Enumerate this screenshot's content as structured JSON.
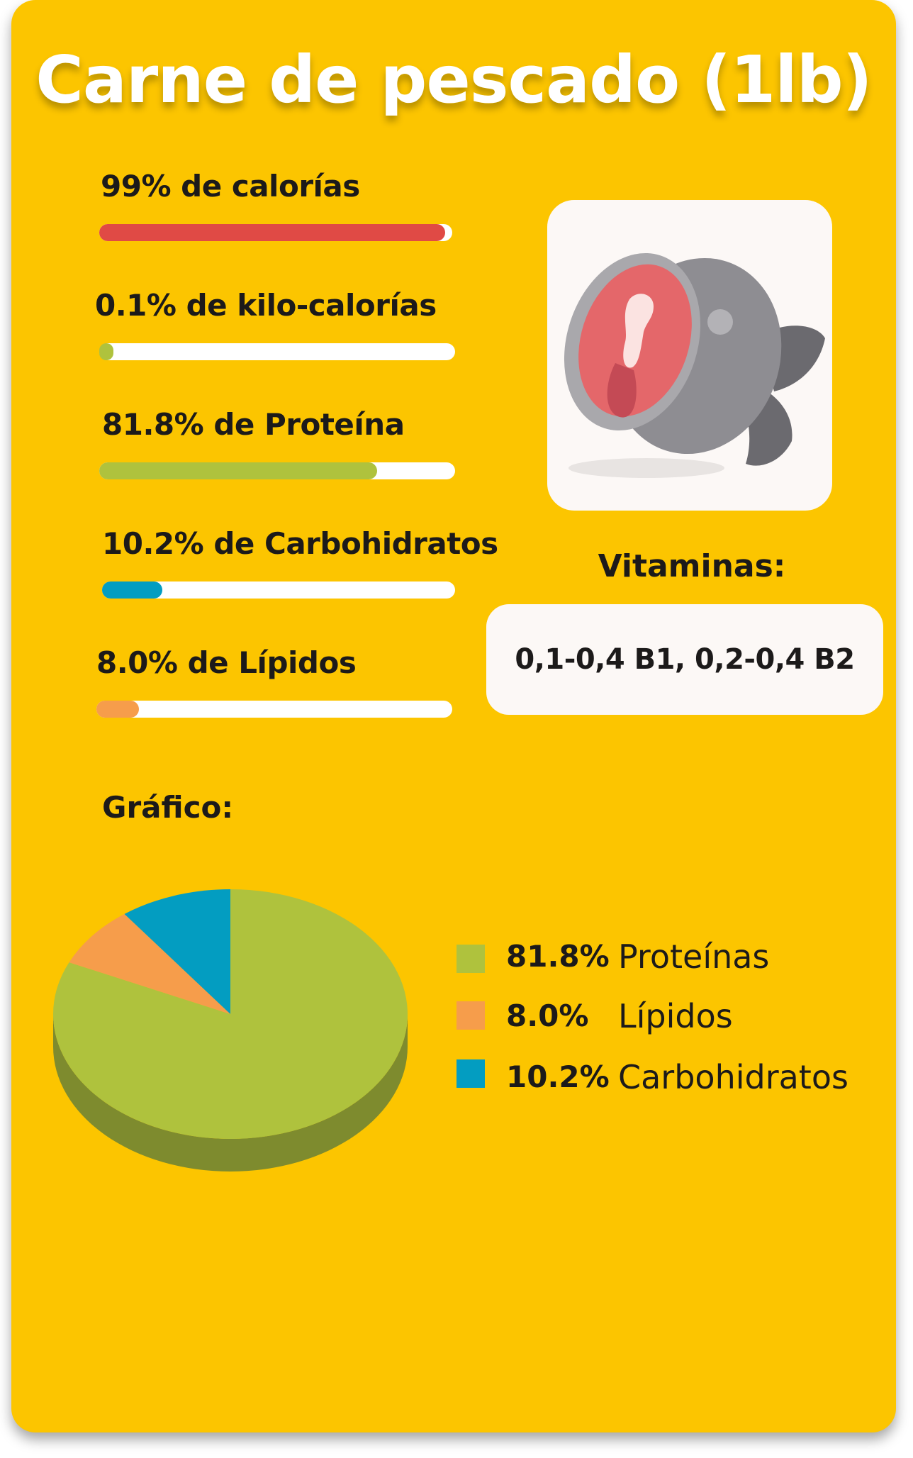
{
  "title": "Carne de pescado (1lb)",
  "bars": [
    {
      "label": "99% de calorías",
      "value": 0.98,
      "color": "#E04A45"
    },
    {
      "label": "0.1% de kilo-calorías",
      "value": 0.04,
      "color": "#AFC23D"
    },
    {
      "label": "81.8% de Proteína",
      "value": 0.78,
      "color": "#AFC23D"
    },
    {
      "label": "10.2% de Carbohidratos",
      "value": 0.17,
      "color": "#039DC1"
    },
    {
      "label": "8.0% de Lípidos",
      "value": 0.12,
      "color": "#F69D4B"
    }
  ],
  "image": {
    "icon": "fish-meat-icon"
  },
  "vitamins": {
    "title": "Vitaminas:",
    "text": "0,1-0,4 B1, 0,2-0,4 B2"
  },
  "chart_heading": "Gráfico:",
  "chart_data": {
    "type": "pie",
    "categories": [
      "Proteínas",
      "Lípidos",
      "Carbohidratos"
    ],
    "values": [
      81.8,
      8.0,
      10.2
    ],
    "value_labels": [
      "81.8%",
      "8.0%",
      "10.2%"
    ],
    "colors": [
      "#AFC23D",
      "#F69D4B",
      "#039DC1"
    ],
    "side_colors": [
      "#7E8B2E",
      "#B2733A",
      "#027290"
    ],
    "legend_position": "right",
    "style": "3d"
  }
}
